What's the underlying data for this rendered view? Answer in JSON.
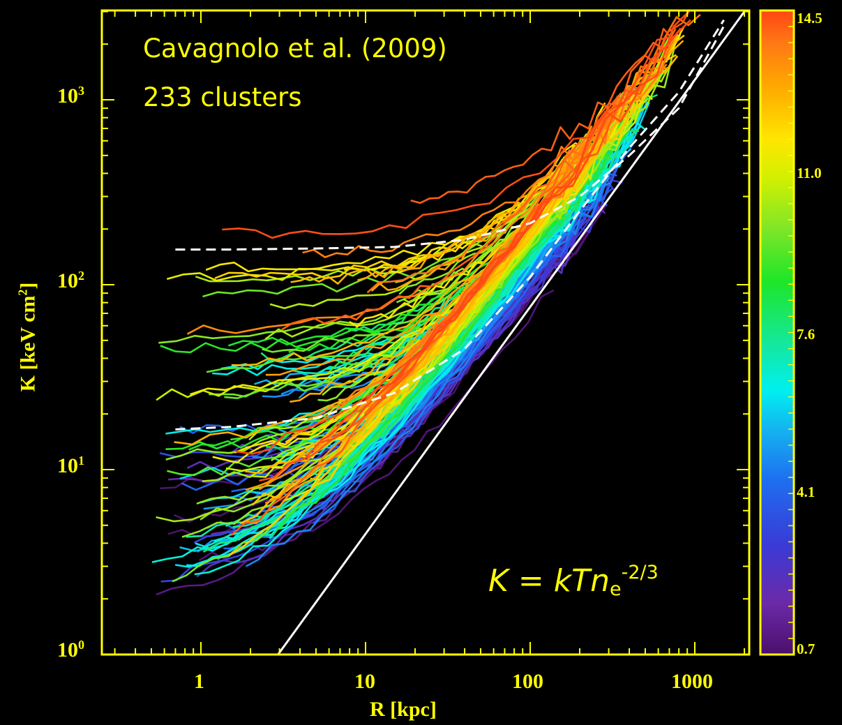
{
  "chart_data": {
    "type": "line",
    "annotation_lines": [
      "Cavagnolo et al. (2009)",
      "233 clusters"
    ],
    "formula": {
      "lhs": "K",
      "eq": " = ",
      "kT": "kT",
      "n": "n",
      "sub": "e",
      "sup": "-2/3"
    },
    "xlabel": "R [kpc]",
    "ylabel": "K [keV cm",
    "ylabel_sup": "2",
    "ylabel_end": "]",
    "x_scale": "log",
    "y_scale": "log",
    "xlim": [
      0.2,
      2000
    ],
    "ylim": [
      0.9,
      3000
    ],
    "x_ticks": [
      "1",
      "10",
      "100",
      "1000"
    ],
    "y_ticks": [
      {
        "base": "10",
        "exp": "0"
      },
      {
        "base": "10",
        "exp": "1"
      },
      {
        "base": "10",
        "exp": "2"
      },
      {
        "base": "10",
        "exp": "3"
      }
    ],
    "colorbar": {
      "labels": [
        "14.5",
        "11.0",
        "7.6",
        "4.1",
        "0.7"
      ],
      "range": [
        0.7,
        14.5
      ],
      "colormap": "rainbow"
    },
    "reference_lines": [
      {
        "style": "solid",
        "color": "#FFFFFF",
        "x": [
          2.7,
          2000
        ],
        "y": [
          0.9,
          3000
        ]
      },
      {
        "style": "dashed",
        "color": "#FFFFFF",
        "x": [
          0.7,
          1.5,
          5,
          15,
          40,
          100,
          200,
          400,
          800,
          1500
        ],
        "y": [
          155,
          155,
          157,
          160,
          175,
          215,
          300,
          500,
          900,
          2500
        ]
      },
      {
        "style": "dashed",
        "color": "#FFFFFF",
        "x": [
          0.7,
          1.5,
          5,
          15,
          40,
          100,
          200,
          400,
          800,
          1500
        ],
        "y": [
          16.5,
          17,
          19,
          26,
          45,
          110,
          250,
          550,
          1100,
          2700
        ]
      }
    ],
    "n_profiles": 233
  },
  "colors": {
    "axis": "#FFFF00",
    "background": "#000000",
    "text": "#FFFF00"
  }
}
